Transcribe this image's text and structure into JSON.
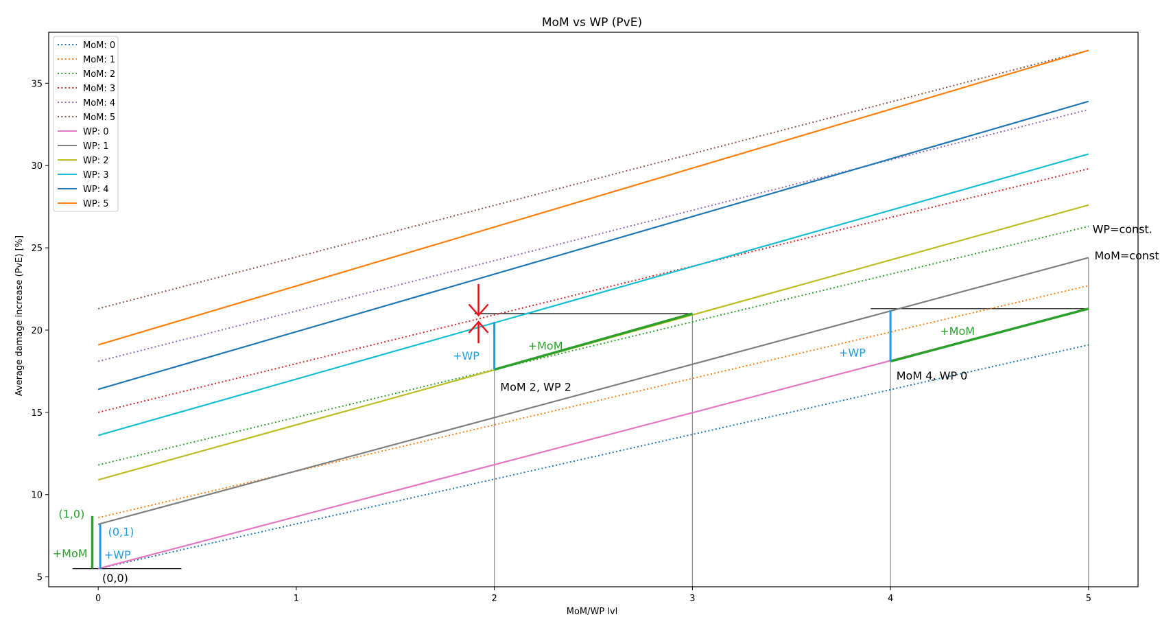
{
  "chart_data": {
    "type": "line",
    "title": "MoM vs WP (PvE)",
    "xlabel": "MoM/WP lvl",
    "ylabel": "Average damage increase (PvE) [%]",
    "xlim": [
      -0.25,
      5.25
    ],
    "ylim": [
      4.4,
      38.1
    ],
    "xticks": [
      0,
      1,
      2,
      3,
      4,
      5
    ],
    "yticks": [
      5,
      10,
      15,
      20,
      25,
      30,
      35
    ],
    "grid": false,
    "legend_position": "top-left",
    "x": [
      0,
      5
    ],
    "series": [
      {
        "name": "MoM: 0",
        "style": "dotted",
        "color": "#1f77b4",
        "values": [
          5.5,
          19.1
        ]
      },
      {
        "name": "MoM: 1",
        "style": "dotted",
        "color": "#ff7f0e",
        "values": [
          8.6,
          22.7
        ]
      },
      {
        "name": "MoM: 2",
        "style": "dotted",
        "color": "#2ca02c",
        "values": [
          11.8,
          26.3
        ]
      },
      {
        "name": "MoM: 3",
        "style": "dotted",
        "color": "#d62728",
        "values": [
          15.0,
          29.8
        ]
      },
      {
        "name": "MoM: 4",
        "style": "dotted",
        "color": "#9467bd",
        "values": [
          18.1,
          33.4
        ]
      },
      {
        "name": "MoM: 5",
        "style": "dotted",
        "color": "#8c564b",
        "values": [
          21.3,
          37.0
        ]
      },
      {
        "name": "WP: 0",
        "style": "solid",
        "color": "#e377c2",
        "values": [
          5.5,
          21.3
        ]
      },
      {
        "name": "WP: 1",
        "style": "solid",
        "color": "#7f7f7f",
        "values": [
          8.2,
          24.4
        ]
      },
      {
        "name": "WP: 2",
        "style": "solid",
        "color": "#bcbd22",
        "values": [
          10.9,
          27.6
        ]
      },
      {
        "name": "WP: 3",
        "style": "solid",
        "color": "#17becf",
        "values": [
          13.6,
          30.7
        ]
      },
      {
        "name": "WP: 4",
        "style": "solid",
        "color": "#1f77b4",
        "values": [
          16.4,
          33.9
        ]
      },
      {
        "name": "WP: 5",
        "style": "solid",
        "color": "#ff7f0e",
        "values": [
          19.1,
          37.0
        ]
      }
    ],
    "annotations": [
      {
        "text": "(1,0)",
        "x": -0.2,
        "y": 8.6,
        "color": "#2ca02c"
      },
      {
        "text": "(0,1)",
        "x": 0.05,
        "y": 7.5,
        "color": "#1f9bde"
      },
      {
        "text": "+MoM",
        "x": -0.23,
        "y": 6.2,
        "color": "#2ca02c"
      },
      {
        "text": "+WP",
        "x": 0.03,
        "y": 6.1,
        "color": "#1f9bde"
      },
      {
        "text": "(0,0)",
        "x": 0.02,
        "y": 4.7,
        "color": "#000000"
      },
      {
        "text": "+WP",
        "x": 1.79,
        "y": 18.2,
        "color": "#1f9bde"
      },
      {
        "text": "+MoM",
        "x": 2.17,
        "y": 18.8,
        "color": "#2ca02c"
      },
      {
        "text": "MoM 2, WP 2",
        "x": 2.03,
        "y": 16.3,
        "color": "#000000"
      },
      {
        "text": "+WP",
        "x": 3.74,
        "y": 18.4,
        "color": "#1f9bde"
      },
      {
        "text": "+MoM",
        "x": 4.25,
        "y": 19.7,
        "color": "#2ca02c"
      },
      {
        "text": "MoM 4, WP 0",
        "x": 4.03,
        "y": 17.0,
        "color": "#000000"
      },
      {
        "text": "WP=const.",
        "x": 5.02,
        "y": 25.9,
        "color": "#000000"
      },
      {
        "text": "MoM=const.",
        "x": 5.03,
        "y": 24.3,
        "color": "#000000"
      }
    ],
    "markers": {
      "hlines": [
        {
          "y": 5.5,
          "x0": -0.13,
          "x1": 0.42
        },
        {
          "y": 21.0,
          "x0": 1.9,
          "x1": 3.0
        },
        {
          "y": 21.3,
          "x0": 3.9,
          "x1": 5.0
        }
      ],
      "vlines": [
        {
          "x": 2,
          "y0": 4.4,
          "y1": 17.6
        },
        {
          "x": 3,
          "y0": 4.4,
          "y1": 21.0
        },
        {
          "x": 4,
          "y0": 4.4,
          "y1": 18.1
        },
        {
          "x": 5,
          "y0": 4.4,
          "y1": 24.4
        }
      ],
      "green_bars": [
        {
          "x0": -0.03,
          "x1": -0.03,
          "y0": 5.5,
          "y1": 8.7
        },
        {
          "x0": 2,
          "x1": 3,
          "y0": 17.6,
          "y1": 21.0
        },
        {
          "x0": 4,
          "x1": 5,
          "y0": 18.1,
          "y1": 21.3
        }
      ],
      "blue_bars": [
        {
          "x": 0.01,
          "y0": 5.5,
          "y1": 8.2
        },
        {
          "x": 2,
          "y0": 17.6,
          "y1": 20.5
        },
        {
          "x": 4,
          "y0": 18.1,
          "y1": 21.2
        }
      ],
      "red_arrows": {
        "x": 1.92,
        "top_from": 22.8,
        "top_to": 20.9,
        "bottom_from": 19.2,
        "bottom_to": 20.5,
        "color": "#e8141e"
      }
    }
  }
}
